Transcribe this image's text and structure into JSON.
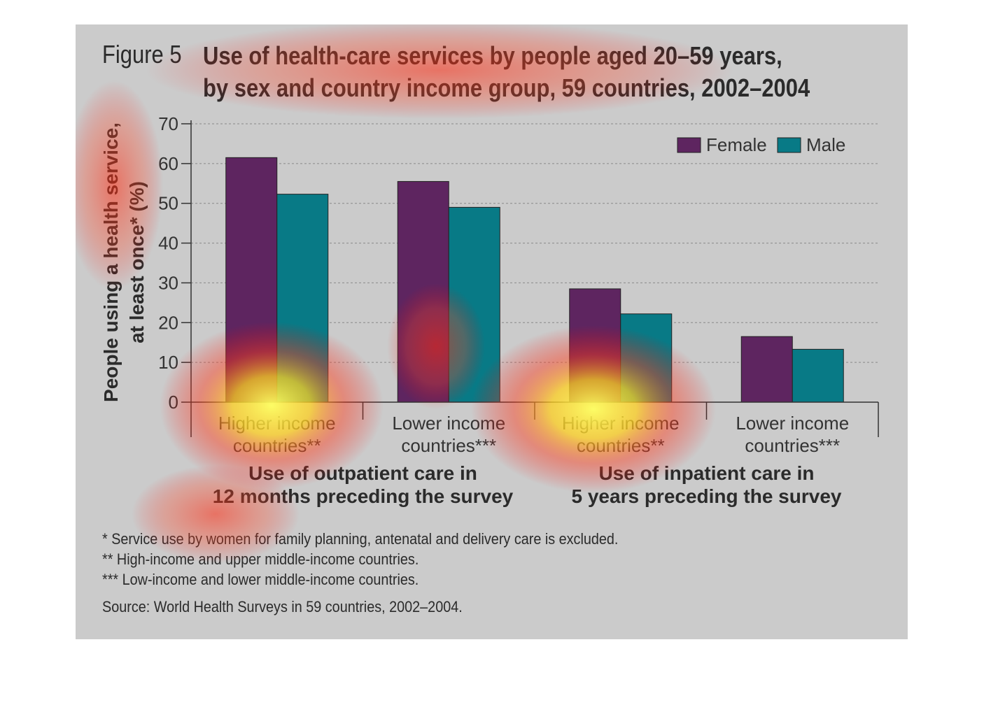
{
  "figure": {
    "label": "Figure 5",
    "title_line1": "Use of health-care services by people aged 20–59 years,",
    "title_line2": "by sex and country income group, 59 countries, 2002–2004"
  },
  "chart_data": {
    "type": "bar",
    "ylabel_line1": "People using a health service,",
    "ylabel_line2": "at least once* (%)",
    "ylim": [
      0,
      70
    ],
    "yticks": [
      0,
      10,
      20,
      30,
      40,
      50,
      60,
      70
    ],
    "grid": true,
    "legend_position": "top-right",
    "categories": [
      {
        "line1": "Higher income",
        "line2": "countries**"
      },
      {
        "line1": "Lower income",
        "line2": "countries***"
      },
      {
        "line1": "Higher income",
        "line2": "countries**"
      },
      {
        "line1": "Lower income",
        "line2": "countries***"
      }
    ],
    "groups": [
      {
        "line1": "Use of outpatient care in",
        "line2": "12 months preceding the survey"
      },
      {
        "line1": "Use of inpatient care in",
        "line2": "5 years preceding the survey"
      }
    ],
    "series": [
      {
        "name": "Female",
        "color": "#5e2560",
        "values": [
          61.5,
          55.5,
          28.5,
          16.5
        ]
      },
      {
        "name": "Male",
        "color": "#087a86",
        "values": [
          52.3,
          49,
          22.2,
          13.3
        ]
      }
    ]
  },
  "notes": {
    "line1": "* Service use by women for family planning, antenatal and delivery care is excluded.",
    "line2": "** High-income and upper middle-income countries.",
    "line3": "*** Low-income and lower middle-income countries.",
    "source": "Source: World Health Surveys in 59 countries, 2002–2004."
  }
}
